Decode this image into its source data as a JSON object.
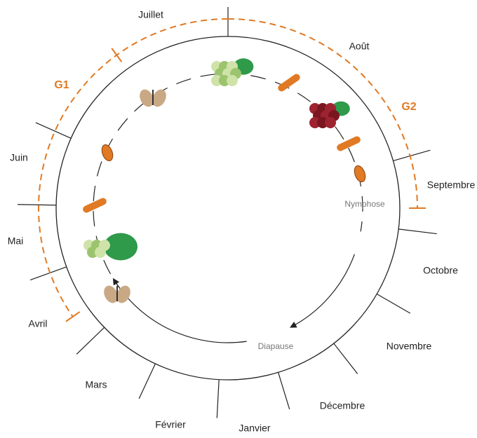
{
  "months": [
    "Juillet",
    "Août",
    "Septembre",
    "Octobre",
    "Novembre",
    "Décembre",
    "Janvier",
    "Février",
    "Mars",
    "Avril",
    "Mai",
    "Juin"
  ],
  "generations": {
    "g1": "G1",
    "g2": "G2"
  },
  "stages": {
    "nymphose": "Nymphose",
    "diapause": "Diapause"
  }
}
